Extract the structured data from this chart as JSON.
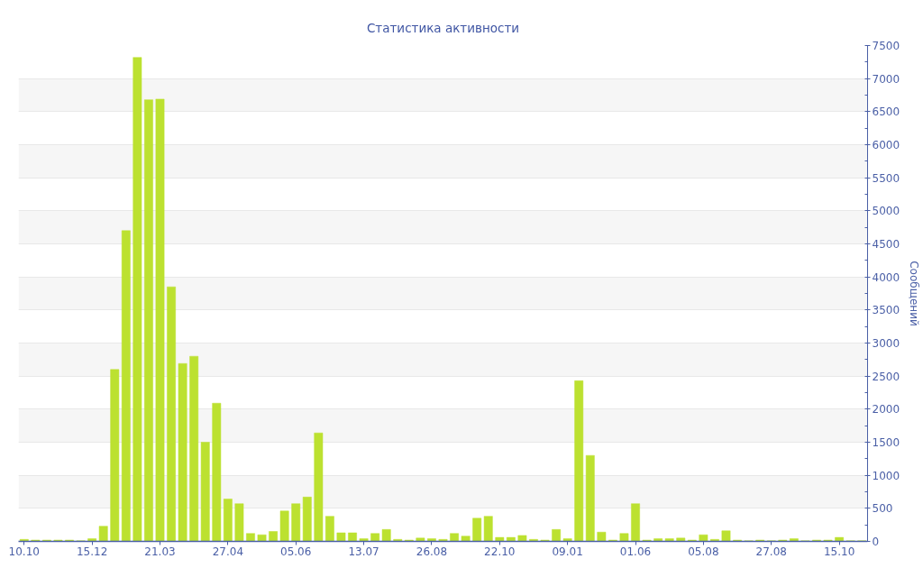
{
  "chart_data": {
    "type": "bar",
    "title": "Статистика активности",
    "ylabel": "Сообщений",
    "color": "#bce130",
    "categories": [
      "10.10",
      null,
      null,
      null,
      null,
      null,
      "15.12",
      null,
      null,
      null,
      null,
      null,
      "21.03",
      null,
      null,
      null,
      null,
      null,
      "27.04",
      null,
      null,
      null,
      null,
      null,
      "05.06",
      null,
      null,
      null,
      null,
      null,
      "13.07",
      null,
      null,
      null,
      null,
      null,
      "26.08",
      null,
      null,
      null,
      null,
      null,
      "22.10",
      null,
      null,
      null,
      null,
      null,
      "09.01",
      null,
      null,
      null,
      null,
      null,
      "01.06",
      null,
      null,
      null,
      null,
      null,
      "05.08",
      null,
      null,
      null,
      null,
      null,
      "27.08",
      null,
      null,
      null,
      null,
      null,
      "15.10",
      null,
      null
    ],
    "values": [
      30,
      20,
      20,
      20,
      20,
      10,
      40,
      230,
      2600,
      4700,
      7320,
      6680,
      6690,
      3850,
      2690,
      2800,
      1500,
      2090,
      640,
      570,
      120,
      100,
      150,
      460,
      570,
      670,
      1640,
      380,
      130,
      130,
      40,
      120,
      180,
      30,
      20,
      50,
      40,
      30,
      120,
      80,
      350,
      380,
      60,
      60,
      90,
      30,
      20,
      180,
      40,
      2430,
      1300,
      140,
      20,
      120,
      570,
      20,
      40,
      40,
      50,
      20,
      100,
      30,
      160,
      20,
      10,
      20,
      10,
      20,
      40,
      10,
      20,
      20,
      60,
      10,
      10
    ],
    "ylim": [
      0,
      7500
    ],
    "yticks": [
      0,
      {
        "value": 250,
        "label": null
      },
      500,
      {
        "value": 750,
        "label": null
      },
      1000,
      {
        "value": 1250,
        "label": null
      },
      1500,
      {
        "value": 1750,
        "label": null
      },
      2000,
      {
        "value": 2250,
        "label": null
      },
      2500,
      {
        "value": 2750,
        "label": null
      },
      3000,
      {
        "value": 3250,
        "label": null
      },
      3500,
      {
        "value": 3750,
        "label": null
      },
      4000,
      {
        "value": 4250,
        "label": null
      },
      4500,
      {
        "value": 4750,
        "label": null
      },
      5000,
      {
        "value": 5250,
        "label": null
      },
      5500,
      {
        "value": 5750,
        "label": null
      },
      6000,
      {
        "value": 6250,
        "label": null
      },
      6500,
      {
        "value": 6750,
        "label": null
      },
      7000,
      {
        "value": 7250,
        "label": null
      },
      7500
    ],
    "grid": "y"
  }
}
